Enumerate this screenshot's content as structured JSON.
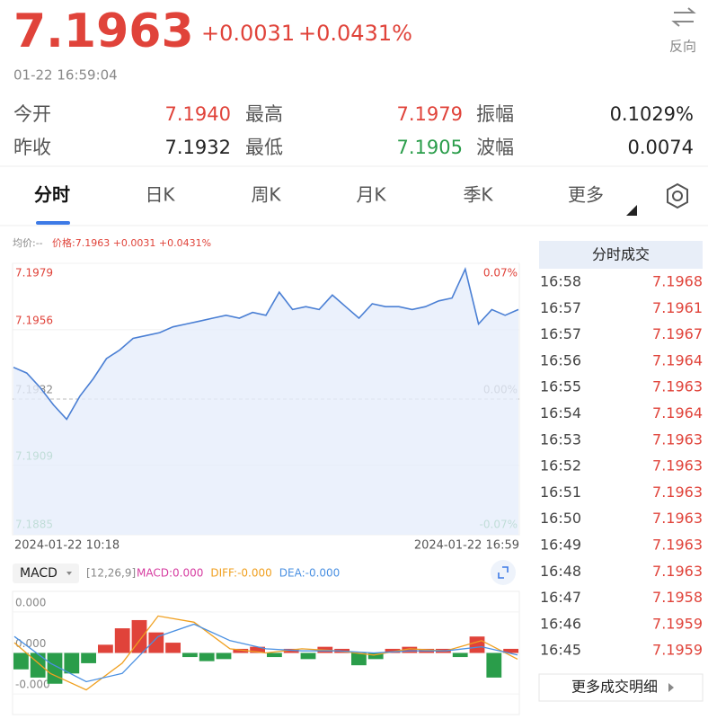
{
  "header": {
    "price": "7.1963",
    "change": "+0.0031",
    "change_pct": "+0.0431%",
    "time": "01-22 16:59:04",
    "reverse": "反向"
  },
  "stats": [
    [
      "今开",
      "7.1940",
      "最高",
      "7.1979",
      "振幅",
      "0.1029%"
    ],
    [
      "昨收",
      "7.1932",
      "最低",
      "7.1905",
      "波幅",
      "0.0074"
    ]
  ],
  "tabs": [
    "分时",
    "日K",
    "周K",
    "月K",
    "季K",
    "更多"
  ],
  "chart_data": [
    {
      "type": "line",
      "avg_legend": "均价:--",
      "price_legend": "价格:7.1963 +0.0031 +0.0431%",
      "color": "#4a7fd4",
      "values": [
        7.1943,
        7.1941,
        7.1936,
        7.193,
        7.1925,
        7.1933,
        7.1939,
        7.1946,
        7.1949,
        7.1953,
        7.1954,
        7.1955,
        7.1957,
        7.1958,
        7.1959,
        7.196,
        7.1961,
        7.196,
        7.1962,
        7.1961,
        7.1969,
        7.1963,
        7.1964,
        7.1963,
        7.1968,
        7.1964,
        7.196,
        7.1965,
        7.1964,
        7.1964,
        7.1963,
        7.1964,
        7.1966,
        7.1967,
        7.1977,
        7.1958,
        7.1963,
        7.1961,
        7.1963
      ],
      "ylim": [
        7.1885,
        7.1979
      ],
      "yticks": [
        7.1885,
        7.1909,
        7.1932,
        7.1956,
        7.1979
      ],
      "y2lim": [
        -0.0653,
        0.0653
      ],
      "y2ticks": [
        {
          "value": -0.0653,
          "label": "-0.07%"
        },
        {
          "value": 0,
          "label": "0.00%"
        },
        {
          "value": 0.0653,
          "label": "0.07%"
        }
      ],
      "x_labels": [
        "2024-01-22 10:18",
        "2024-01-22 16:59"
      ],
      "up_color": "#e0433a",
      "down_color": "#2a9d4a"
    },
    {
      "type": "macd",
      "selector": "MACD",
      "params": "[12,26,9]",
      "up_color": "#e0433a",
      "down_color": "#2a9d4a",
      "ylim": [
        -0.0003,
        0.0003
      ],
      "yticks": [
        {
          "value": -0.0002,
          "label": "-0.000"
        },
        {
          "value": 0,
          "label": "0.000"
        },
        {
          "value": 0.0002,
          "label": "0.000"
        }
      ],
      "series": [
        {
          "name": "MACD:0.000",
          "color": "#d63ca0",
          "values": [
            -8e-05,
            -0.00012,
            -0.00015,
            -0.0001,
            -5e-05,
            4e-05,
            0.00012,
            0.00016,
            0.0001,
            5e-05,
            -2e-05,
            -4e-05,
            -3e-05,
            2e-05,
            3e-05,
            -2e-05,
            2e-05,
            -3e-05,
            3e-05,
            2e-05,
            -6e-05,
            -3e-05,
            2e-05,
            3e-05,
            2e-05,
            2e-05,
            -2e-05,
            8e-05,
            -0.00012,
            2e-05
          ]
        },
        {
          "name": "DIFF:-0.000",
          "color": "#f0a020",
          "values": [
            5e-05,
            -0.0001,
            -0.00018,
            -5e-05,
            0.00018,
            0.00015,
            2e-05,
            0,
            2e-05,
            1e-05,
            -1e-05,
            2e-05,
            1e-05,
            6e-05,
            -3e-05
          ]
        },
        {
          "name": "DEA:-0.000",
          "color": "#4a90e2",
          "values": [
            8e-05,
            -5e-05,
            -0.00014,
            -0.0001,
            8e-05,
            0.00014,
            6e-05,
            2e-05,
            1e-05,
            1e-05,
            0,
            1e-05,
            1e-05,
            3e-05,
            -1e-05
          ]
        }
      ]
    }
  ],
  "trades": {
    "title": "分时成交",
    "rows": [
      [
        "16:58",
        "7.1968"
      ],
      [
        "16:57",
        "7.1961"
      ],
      [
        "16:57",
        "7.1967"
      ],
      [
        "16:56",
        "7.1964"
      ],
      [
        "16:55",
        "7.1963"
      ],
      [
        "16:54",
        "7.1964"
      ],
      [
        "16:53",
        "7.1963"
      ],
      [
        "16:52",
        "7.1963"
      ],
      [
        "16:51",
        "7.1963"
      ],
      [
        "16:50",
        "7.1963"
      ],
      [
        "16:49",
        "7.1963"
      ],
      [
        "16:48",
        "7.1963"
      ],
      [
        "16:47",
        "7.1958"
      ],
      [
        "16:46",
        "7.1959"
      ],
      [
        "16:45",
        "7.1959"
      ]
    ],
    "more": "更多成交明细"
  }
}
